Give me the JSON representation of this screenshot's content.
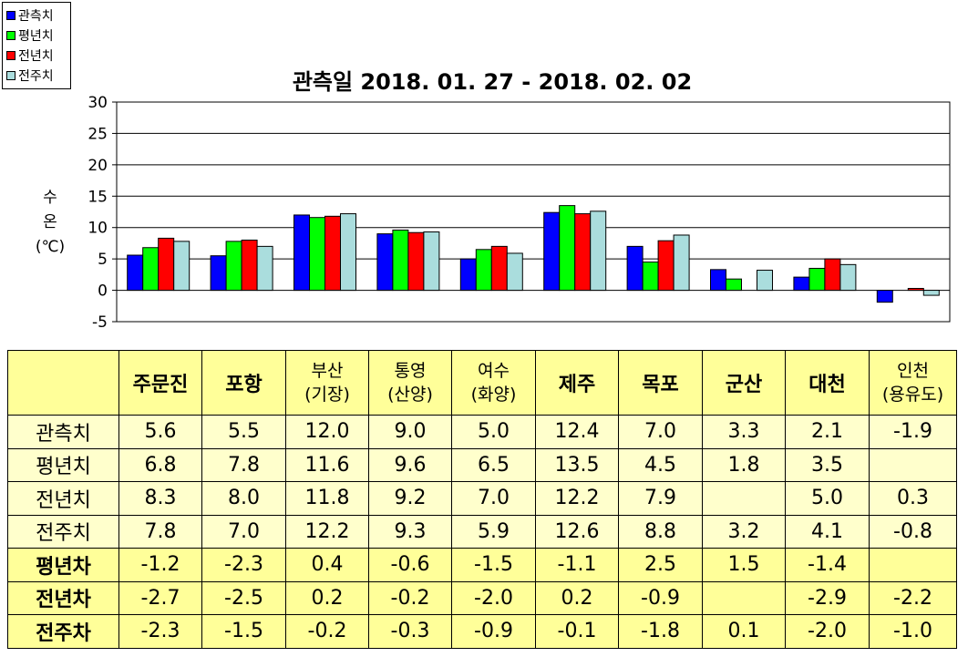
{
  "chart_data": {
    "type": "bar",
    "title": "관측일 2018. 01. 27 - 2018. 02. 02",
    "ylabel_lines": [
      "수",
      "온",
      "(℃)"
    ],
    "ylim": [
      -5,
      30
    ],
    "yticks": [
      30,
      25,
      20,
      15,
      10,
      5,
      0,
      -5
    ],
    "grid": true,
    "legend_position": "top-left",
    "categories": [
      "주문진",
      "포항",
      "부산(기장)",
      "통영(산양)",
      "여수(화양)",
      "제주",
      "목포",
      "군산",
      "대천",
      "인천(용유도)"
    ],
    "series": [
      {
        "name": "관측치",
        "color": "#0000ff",
        "values": [
          5.6,
          5.5,
          12.0,
          9.0,
          5.0,
          12.4,
          7.0,
          3.3,
          2.1,
          -1.9
        ]
      },
      {
        "name": "평년치",
        "color": "#00ff00",
        "values": [
          6.8,
          7.8,
          11.6,
          9.6,
          6.5,
          13.5,
          4.5,
          1.8,
          3.5,
          null
        ]
      },
      {
        "name": "전년치",
        "color": "#ff0000",
        "values": [
          8.3,
          8.0,
          11.8,
          9.2,
          7.0,
          12.2,
          7.9,
          null,
          5.0,
          0.3
        ]
      },
      {
        "name": "전주치",
        "color": "#aadddd",
        "values": [
          7.8,
          7.0,
          12.2,
          9.3,
          5.9,
          12.6,
          8.8,
          3.2,
          4.1,
          -0.8
        ]
      }
    ]
  },
  "table": {
    "columns": [
      [
        "주문진"
      ],
      [
        "포항"
      ],
      [
        "부산",
        "(기장)"
      ],
      [
        "통영",
        "(산양)"
      ],
      [
        "여수",
        "(화양)"
      ],
      [
        "제주"
      ],
      [
        "목포"
      ],
      [
        "군산"
      ],
      [
        "대천"
      ],
      [
        "인천",
        "(용유도)"
      ]
    ],
    "rows": [
      {
        "label": "관측치",
        "bold": false,
        "values": [
          "5.6",
          "5.5",
          "12.0",
          "9.0",
          "5.0",
          "12.4",
          "7.0",
          "3.3",
          "2.1",
          "-1.9"
        ]
      },
      {
        "label": "평년치",
        "bold": false,
        "values": [
          "6.8",
          "7.8",
          "11.6",
          "9.6",
          "6.5",
          "13.5",
          "4.5",
          "1.8",
          "3.5",
          ""
        ]
      },
      {
        "label": "전년치",
        "bold": false,
        "values": [
          "8.3",
          "8.0",
          "11.8",
          "9.2",
          "7.0",
          "12.2",
          "7.9",
          "",
          "5.0",
          "0.3"
        ]
      },
      {
        "label": "전주치",
        "bold": false,
        "values": [
          "7.8",
          "7.0",
          "12.2",
          "9.3",
          "5.9",
          "12.6",
          "8.8",
          "3.2",
          "4.1",
          "-0.8"
        ]
      },
      {
        "label": "평년차",
        "bold": true,
        "values": [
          "-1.2",
          "-2.3",
          "0.4",
          "-0.6",
          "-1.5",
          "-1.1",
          "2.5",
          "1.5",
          "-1.4",
          ""
        ]
      },
      {
        "label": "전년차",
        "bold": true,
        "values": [
          "-2.7",
          "-2.5",
          "0.2",
          "-0.2",
          "-2.0",
          "0.2",
          "-0.9",
          "",
          "-2.9",
          "-2.2"
        ]
      },
      {
        "label": "전주차",
        "bold": true,
        "values": [
          "-2.3",
          "-1.5",
          "-0.2",
          "-0.3",
          "-0.9",
          "-0.1",
          "-1.8",
          "0.1",
          "-2.0",
          "-1.0"
        ]
      }
    ]
  }
}
